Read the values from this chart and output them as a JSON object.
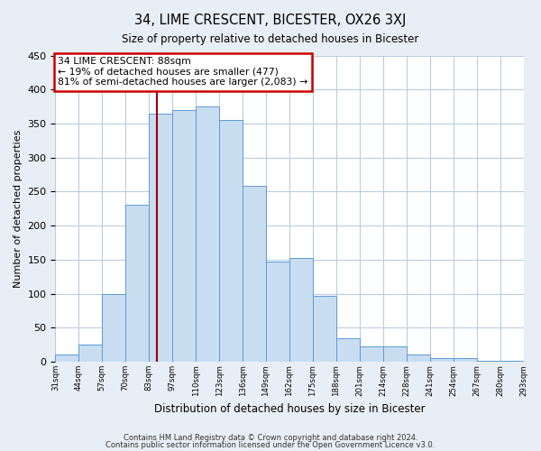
{
  "title": "34, LIME CRESCENT, BICESTER, OX26 3XJ",
  "subtitle": "Size of property relative to detached houses in Bicester",
  "xlabel": "Distribution of detached houses by size in Bicester",
  "ylabel": "Number of detached properties",
  "bar_labels": [
    "31sqm",
    "44sqm",
    "57sqm",
    "70sqm",
    "83sqm",
    "97sqm",
    "110sqm",
    "123sqm",
    "136sqm",
    "149sqm",
    "162sqm",
    "175sqm",
    "188sqm",
    "201sqm",
    "214sqm",
    "228sqm",
    "241sqm",
    "254sqm",
    "267sqm",
    "280sqm",
    "293sqm"
  ],
  "bar_values": [
    10,
    25,
    100,
    230,
    365,
    370,
    375,
    355,
    258,
    147,
    153,
    97,
    35,
    22,
    22,
    10,
    5,
    5,
    2,
    2
  ],
  "bar_color": "#c9ddf0",
  "bar_edge_color": "#5b9bd5",
  "ylim": [
    0,
    450
  ],
  "yticks": [
    0,
    50,
    100,
    150,
    200,
    250,
    300,
    350,
    400,
    450
  ],
  "annotation_title": "34 LIME CRESCENT: 88sqm",
  "annotation_line1": "← 19% of detached houses are smaller (477)",
  "annotation_line2": "81% of semi-detached houses are larger (2,083) →",
  "annotation_box_color": "#ffffff",
  "annotation_box_edge": "#cc0000",
  "vline_color": "#99000d",
  "footer1": "Contains HM Land Registry data © Crown copyright and database right 2024.",
  "footer2": "Contains public sector information licensed under the Open Government Licence v3.0.",
  "background_color": "#e8eef5",
  "plot_bg_color": "#ffffff",
  "grid_color": "#b8cde0"
}
